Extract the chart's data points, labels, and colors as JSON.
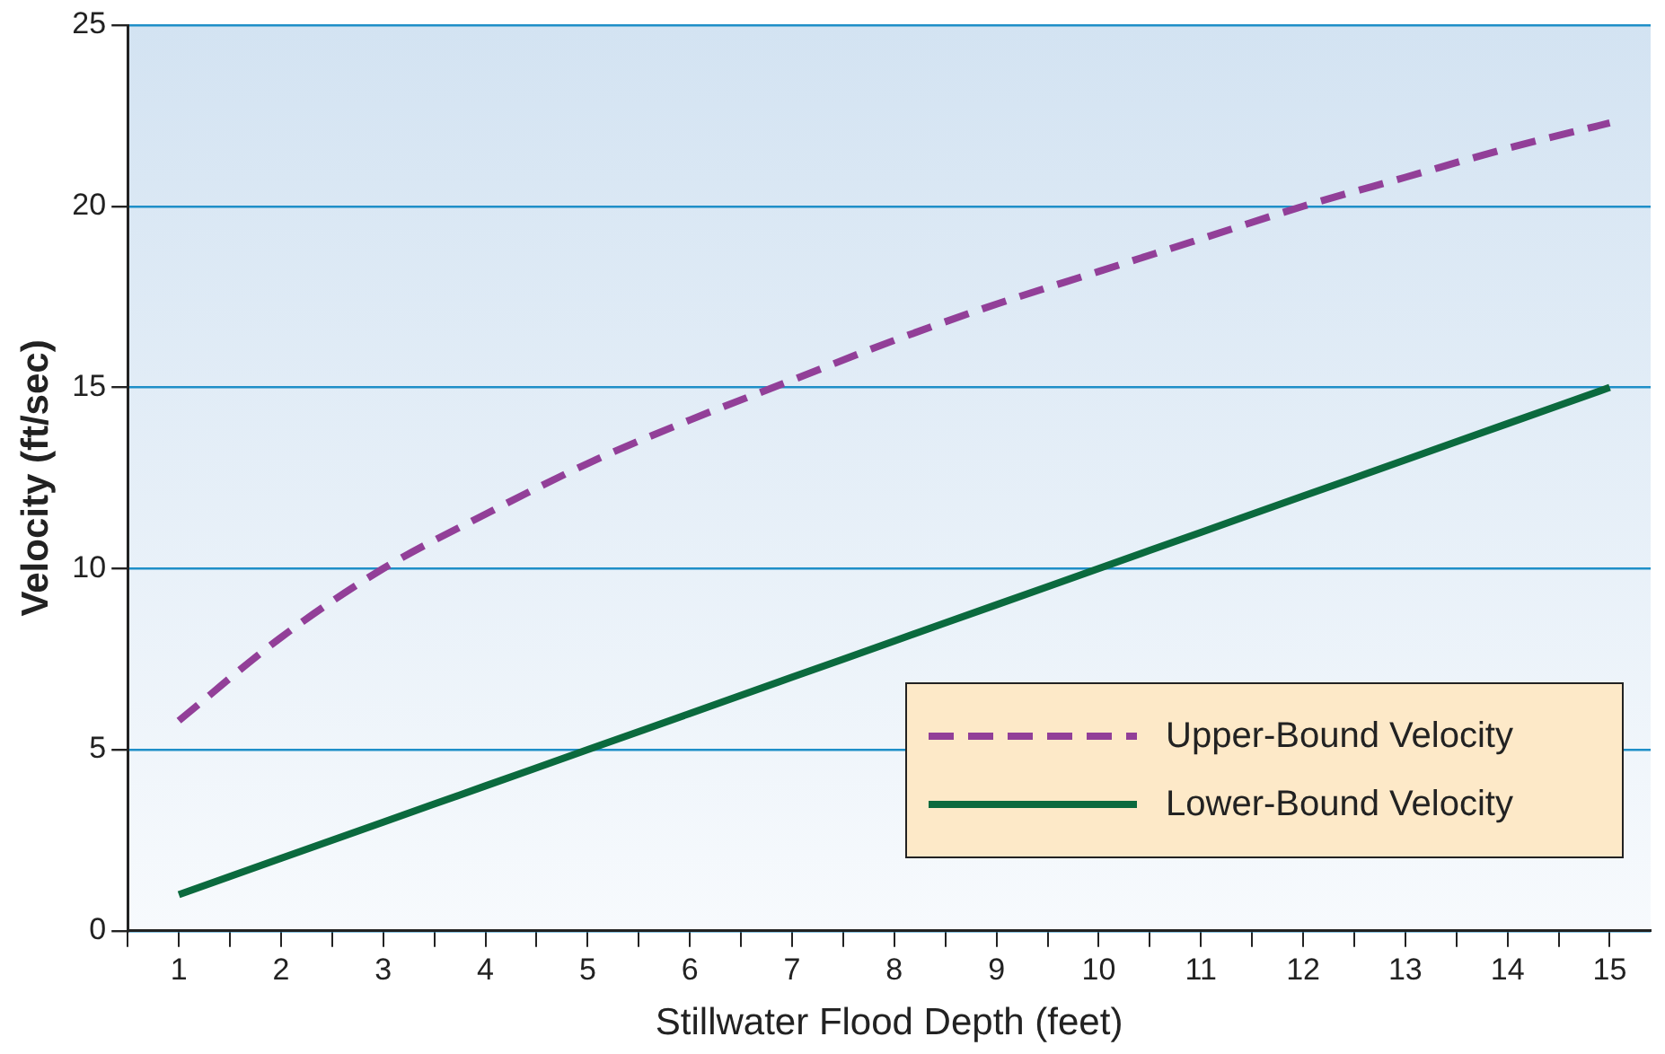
{
  "chart_data": {
    "type": "line",
    "xlabel": "Stillwater Flood Depth (feet)",
    "ylabel": "Velocity (ft/sec)",
    "x": [
      1,
      2,
      3,
      4,
      5,
      6,
      7,
      8,
      9,
      10,
      11,
      12,
      13,
      14,
      15
    ],
    "series": [
      {
        "name": "Upper-Bound Velocity",
        "color": "#923f98",
        "line_style": "dashed",
        "values": [
          5.8,
          8.1,
          10.0,
          11.5,
          12.9,
          14.1,
          15.2,
          16.3,
          17.3,
          18.2,
          19.1,
          20.0,
          20.8,
          21.6,
          22.3
        ]
      },
      {
        "name": "Lower-Bound Velocity",
        "color": "#0b6a3e",
        "line_style": "solid",
        "values": [
          1,
          2,
          3,
          4,
          5,
          6,
          7,
          8,
          9,
          10,
          11,
          12,
          13,
          14,
          15
        ]
      }
    ],
    "xlim": [
      0.5,
      15.4
    ],
    "xticks": [
      {
        "value": 0.5,
        "label": null
      },
      1,
      {
        "value": 1.5,
        "label": null
      },
      2,
      {
        "value": 2.5,
        "label": null
      },
      3,
      {
        "value": 3.5,
        "label": null
      },
      4,
      {
        "value": 4.5,
        "label": null
      },
      5,
      {
        "value": 5.5,
        "label": null
      },
      6,
      {
        "value": 6.5,
        "label": null
      },
      7,
      {
        "value": 7.5,
        "label": null
      },
      8,
      {
        "value": 8.5,
        "label": null
      },
      9,
      {
        "value": 9.5,
        "label": null
      },
      10,
      {
        "value": 10.5,
        "label": null
      },
      11,
      {
        "value": 11.5,
        "label": null
      },
      12,
      {
        "value": 12.5,
        "label": null
      },
      13,
      {
        "value": 13.5,
        "label": null
      },
      14,
      {
        "value": 14.5,
        "label": null
      },
      15
    ],
    "ylim": [
      0,
      25
    ],
    "yticks": [
      0,
      5,
      10,
      15,
      20,
      25
    ],
    "grid": "y",
    "legend": "bottom right",
    "marker": "none"
  }
}
